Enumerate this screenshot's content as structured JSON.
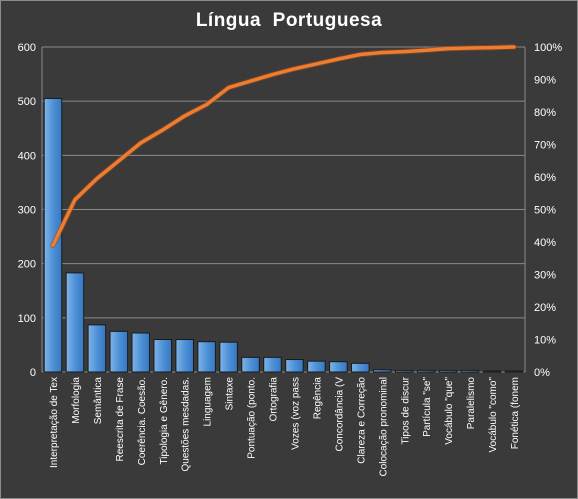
{
  "chart_data": {
    "type": "bar",
    "title": "Língua  Portuguesa",
    "categories": [
      "Interpretação de Tex",
      "Morfologia",
      "Semântica",
      "Reescrita de Frase",
      "Coerência. Coesão.",
      "Tipologia e Gênero.",
      "Questões mesdadas.",
      "Linguagem",
      "Sintaxe",
      "Pontuação (ponto.",
      "Ortografia",
      "Vozes (voz pass",
      "Regência",
      "Concordância (V",
      "Clareza e Correção",
      "Colocação pronominal",
      "Tipos de discur",
      "Partícula \"se\"",
      "Vocábulo \"que\"",
      "Paralelismo",
      "Vocábulo \"como\"",
      "Fonética (fonem"
    ],
    "series": [
      {
        "type": "bar",
        "color": "#5b9bd5",
        "values": [
          505,
          183,
          87,
          75,
          72,
          60,
          60,
          56,
          55,
          27,
          27,
          23,
          20,
          19,
          16,
          4,
          3,
          3,
          3,
          3,
          2,
          2
        ]
      },
      {
        "type": "line",
        "axis": "right",
        "color": "#ed7d31",
        "values": [
          39,
          53,
          59.5,
          65,
          70.5,
          74.5,
          78.8,
          82.3,
          87.5,
          89.5,
          91.5,
          93.3,
          94.8,
          96.3,
          97.7,
          98.3,
          98.6,
          99,
          99.5,
          99.7,
          99.8,
          100
        ]
      }
    ],
    "ylim": [
      0,
      600
    ],
    "y_ticks": [
      0,
      100,
      200,
      300,
      400,
      500,
      600
    ],
    "y2lim": [
      0,
      100
    ],
    "y2_ticks": [
      "0%",
      "10%",
      "20%",
      "30%",
      "40%",
      "50%",
      "60%",
      "70%",
      "80%",
      "90%",
      "100%"
    ],
    "grid": true,
    "legend": "none"
  }
}
